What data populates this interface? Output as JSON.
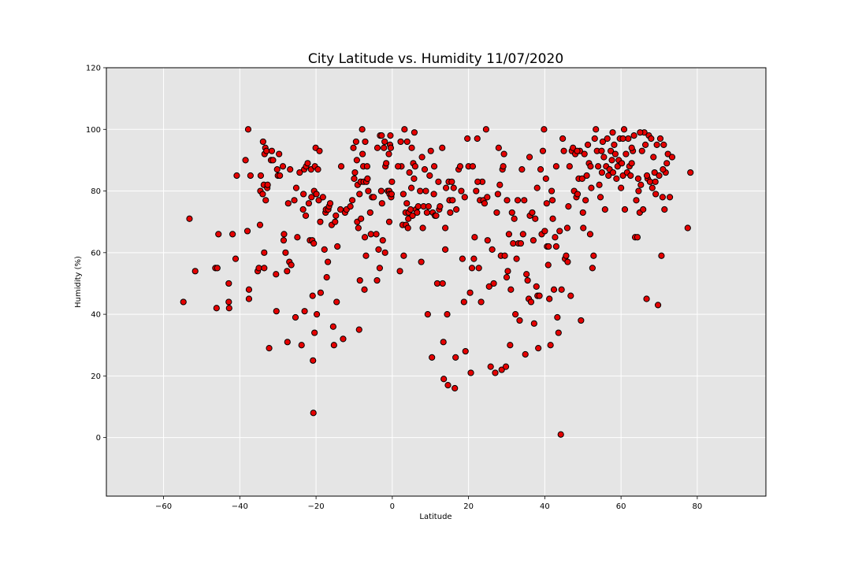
{
  "chart_data": {
    "type": "scatter",
    "title": "City Latitude vs. Humidity 11/07/2020",
    "xlabel": "Latitude",
    "ylabel": "Humidity (%)",
    "xlim": [
      -75,
      98
    ],
    "ylim": [
      -19,
      120
    ],
    "x_ticks": [
      -60,
      -40,
      -20,
      0,
      20,
      40,
      60,
      80
    ],
    "y_ticks": [
      0,
      20,
      40,
      60,
      80,
      100,
      120
    ],
    "grid": true,
    "background": "#e5e5e5",
    "marker_color": "#e60000",
    "marker_edge": "#000000",
    "points": [
      [
        -54.8,
        44
      ],
      [
        -53.2,
        71
      ],
      [
        -51.7,
        54
      ],
      [
        -46.4,
        55
      ],
      [
        -46.1,
        42
      ],
      [
        -45.9,
        55
      ],
      [
        -45.6,
        66
      ],
      [
        -42.9,
        50
      ],
      [
        -42.9,
        44
      ],
      [
        -42.8,
        42
      ],
      [
        -41.9,
        66
      ],
      [
        -41.1,
        58
      ],
      [
        -40.8,
        85
      ],
      [
        -38.5,
        90
      ],
      [
        -38.0,
        67
      ],
      [
        -37.8,
        100
      ],
      [
        -37.6,
        48
      ],
      [
        -37.6,
        45
      ],
      [
        -37.2,
        85
      ],
      [
        -35.3,
        54
      ],
      [
        -35.0,
        55
      ],
      [
        -34.7,
        69
      ],
      [
        -34.6,
        80
      ],
      [
        -34.5,
        85
      ],
      [
        -34.0,
        79
      ],
      [
        -33.9,
        96
      ],
      [
        -33.7,
        82
      ],
      [
        -33.6,
        55
      ],
      [
        -33.6,
        60
      ],
      [
        -33.5,
        92
      ],
      [
        -33.3,
        94
      ],
      [
        -33.2,
        77
      ],
      [
        -33.0,
        93
      ],
      [
        -32.8,
        81
      ],
      [
        -32.7,
        82
      ],
      [
        -32.3,
        29
      ],
      [
        -31.8,
        90
      ],
      [
        -31.6,
        93
      ],
      [
        -31.3,
        90
      ],
      [
        -30.5,
        53
      ],
      [
        -30.4,
        41
      ],
      [
        -30.2,
        87
      ],
      [
        -30.0,
        85
      ],
      [
        -29.7,
        92
      ],
      [
        -29.5,
        85
      ],
      [
        -28.7,
        88
      ],
      [
        -28.5,
        64
      ],
      [
        -28.4,
        66
      ],
      [
        -28.0,
        60
      ],
      [
        -27.6,
        54
      ],
      [
        -27.5,
        31
      ],
      [
        -27.3,
        76
      ],
      [
        -27.0,
        57
      ],
      [
        -26.8,
        87
      ],
      [
        -26.5,
        56
      ],
      [
        -25.7,
        77
      ],
      [
        -25.4,
        39
      ],
      [
        -25.2,
        81
      ],
      [
        -24.9,
        65
      ],
      [
        -24.3,
        86
      ],
      [
        -23.8,
        30
      ],
      [
        -23.4,
        74
      ],
      [
        -23.3,
        79
      ],
      [
        -23.1,
        87
      ],
      [
        -23.0,
        41
      ],
      [
        -22.7,
        72
      ],
      [
        -22.6,
        88
      ],
      [
        -22.2,
        89
      ],
      [
        -21.9,
        76
      ],
      [
        -21.6,
        64
      ],
      [
        -21.3,
        87
      ],
      [
        -21.2,
        78
      ],
      [
        -21.0,
        64
      ],
      [
        -20.9,
        46
      ],
      [
        -20.8,
        25
      ],
      [
        -20.7,
        8
      ],
      [
        -20.6,
        63
      ],
      [
        -20.5,
        80
      ],
      [
        -20.4,
        34
      ],
      [
        -20.3,
        88
      ],
      [
        -20.1,
        94
      ],
      [
        -19.9,
        79
      ],
      [
        -19.8,
        40
      ],
      [
        -19.5,
        87
      ],
      [
        -19.3,
        77
      ],
      [
        -19.1,
        93
      ],
      [
        -18.9,
        70
      ],
      [
        -18.8,
        47
      ],
      [
        -18.2,
        78
      ],
      [
        -17.8,
        61
      ],
      [
        -17.5,
        73
      ],
      [
        -17.4,
        74
      ],
      [
        -17.2,
        52
      ],
      [
        -16.9,
        57
      ],
      [
        -16.8,
        74
      ],
      [
        -16.6,
        75
      ],
      [
        -16.3,
        76
      ],
      [
        -15.9,
        69
      ],
      [
        -15.5,
        36
      ],
      [
        -15.3,
        30
      ],
      [
        -15.0,
        70
      ],
      [
        -14.8,
        72
      ],
      [
        -14.6,
        44
      ],
      [
        -14.4,
        62
      ],
      [
        -13.6,
        74
      ],
      [
        -13.4,
        88
      ],
      [
        -12.9,
        32
      ],
      [
        -12.4,
        73
      ],
      [
        -12.0,
        74
      ],
      [
        -11.0,
        75
      ],
      [
        -10.5,
        77
      ],
      [
        -10.2,
        94
      ],
      [
        -10.0,
        84
      ],
      [
        -9.8,
        86
      ],
      [
        -9.5,
        96
      ],
      [
        -9.3,
        90
      ],
      [
        -9.2,
        70
      ],
      [
        -9.1,
        82
      ],
      [
        -8.9,
        68
      ],
      [
        -8.7,
        35
      ],
      [
        -8.6,
        79
      ],
      [
        -8.5,
        51
      ],
      [
        -8.3,
        83
      ],
      [
        -8.2,
        71
      ],
      [
        -7.9,
        100
      ],
      [
        -7.8,
        92
      ],
      [
        -7.6,
        88
      ],
      [
        -7.5,
        83
      ],
      [
        -7.3,
        48
      ],
      [
        -7.2,
        65
      ],
      [
        -7.1,
        96
      ],
      [
        -6.9,
        59
      ],
      [
        -6.8,
        83
      ],
      [
        -6.6,
        88
      ],
      [
        -6.5,
        84
      ],
      [
        -6.3,
        80
      ],
      [
        -5.8,
        73
      ],
      [
        -5.6,
        66
      ],
      [
        -5.3,
        78
      ],
      [
        -4.9,
        78
      ],
      [
        -4.2,
        66
      ],
      [
        -4.0,
        51
      ],
      [
        -3.9,
        94
      ],
      [
        -3.6,
        61
      ],
      [
        -3.3,
        55
      ],
      [
        -3.2,
        98
      ],
      [
        -2.9,
        80
      ],
      [
        -2.8,
        98
      ],
      [
        -2.7,
        76
      ],
      [
        -2.5,
        64
      ],
      [
        -2.2,
        94
      ],
      [
        -1.9,
        60
      ],
      [
        -1.8,
        88
      ],
      [
        -1.6,
        89
      ],
      [
        -1.2,
        80
      ],
      [
        -0.9,
        92
      ],
      [
        -0.8,
        70
      ],
      [
        -0.8,
        80
      ],
      [
        -0.7,
        79
      ],
      [
        -0.6,
        95
      ],
      [
        -0.5,
        98
      ],
      [
        -0.3,
        78
      ],
      [
        -0.2,
        79
      ],
      [
        -0.1,
        83
      ],
      [
        2.0,
        54
      ],
      [
        2.2,
        96
      ],
      [
        2.4,
        88
      ],
      [
        2.7,
        69
      ],
      [
        2.9,
        79
      ],
      [
        3.0,
        59
      ],
      [
        3.2,
        100
      ],
      [
        3.5,
        73
      ],
      [
        3.6,
        69
      ],
      [
        3.8,
        76
      ],
      [
        3.9,
        96
      ],
      [
        4.1,
        68
      ],
      [
        4.2,
        71
      ],
      [
        4.3,
        73
      ],
      [
        4.5,
        86
      ],
      [
        4.8,
        74
      ],
      [
        5.0,
        81
      ],
      [
        5.1,
        94
      ],
      [
        5.3,
        72
      ],
      [
        5.5,
        89
      ],
      [
        5.7,
        84
      ],
      [
        5.8,
        99
      ],
      [
        6.0,
        88
      ],
      [
        6.2,
        74
      ],
      [
        6.5,
        73
      ],
      [
        6.8,
        75
      ],
      [
        7.3,
        80
      ],
      [
        7.6,
        57
      ],
      [
        7.8,
        91
      ],
      [
        8.0,
        68
      ],
      [
        8.2,
        75
      ],
      [
        8.5,
        87
      ],
      [
        8.8,
        80
      ],
      [
        9.1,
        73
      ],
      [
        9.3,
        40
      ],
      [
        9.5,
        75
      ],
      [
        9.8,
        85
      ],
      [
        10.1,
        93
      ],
      [
        10.4,
        26
      ],
      [
        10.6,
        73
      ],
      [
        10.9,
        79
      ],
      [
        11.2,
        72
      ],
      [
        11.5,
        72
      ],
      [
        11.8,
        50
      ],
      [
        12.1,
        83
      ],
      [
        12.3,
        74
      ],
      [
        12.5,
        75
      ],
      [
        13.1,
        94
      ],
      [
        13.2,
        50
      ],
      [
        13.4,
        31
      ],
      [
        13.5,
        19
      ],
      [
        13.9,
        68
      ],
      [
        13.9,
        61
      ],
      [
        14.1,
        81
      ],
      [
        14.4,
        40
      ],
      [
        14.6,
        17
      ],
      [
        14.8,
        83
      ],
      [
        15.0,
        77
      ],
      [
        15.2,
        73
      ],
      [
        15.6,
        83
      ],
      [
        15.8,
        77
      ],
      [
        16.1,
        81
      ],
      [
        16.4,
        16
      ],
      [
        16.6,
        26
      ],
      [
        16.8,
        74
      ],
      [
        17.4,
        87
      ],
      [
        17.8,
        88
      ],
      [
        18.1,
        80
      ],
      [
        18.4,
        58
      ],
      [
        18.8,
        44
      ],
      [
        19.2,
        28
      ],
      [
        19.7,
        97
      ],
      [
        20.0,
        88
      ],
      [
        20.4,
        47
      ],
      [
        20.6,
        21
      ],
      [
        20.9,
        55
      ],
      [
        21.1,
        88
      ],
      [
        21.4,
        58
      ],
      [
        21.6,
        65
      ],
      [
        22.0,
        80
      ],
      [
        22.3,
        97
      ],
      [
        22.7,
        55
      ],
      [
        23.0,
        77
      ],
      [
        23.3,
        44
      ],
      [
        23.6,
        83
      ],
      [
        23.9,
        77
      ],
      [
        24.2,
        76
      ],
      [
        24.6,
        100
      ],
      [
        25.0,
        64
      ],
      [
        25.4,
        49
      ],
      [
        25.8,
        23
      ],
      [
        26.2,
        61
      ],
      [
        26.6,
        50
      ],
      [
        27.0,
        21
      ],
      [
        27.4,
        73
      ],
      [
        27.7,
        79
      ],
      [
        27.9,
        94
      ],
      [
        28.2,
        82
      ],
      [
        28.5,
        59
      ],
      [
        28.7,
        22
      ],
      [
        28.9,
        87
      ],
      [
        29.1,
        88
      ],
      [
        29.3,
        92
      ],
      [
        29.5,
        59
      ],
      [
        29.8,
        23
      ],
      [
        30.1,
        77
      ],
      [
        30.3,
        54
      ],
      [
        30.6,
        66
      ],
      [
        30.9,
        30
      ],
      [
        31.1,
        48
      ],
      [
        31.4,
        73
      ],
      [
        31.7,
        63
      ],
      [
        32.0,
        71
      ],
      [
        32.3,
        40
      ],
      [
        32.6,
        58
      ],
      [
        32.9,
        77
      ],
      [
        33.1,
        63
      ],
      [
        33.4,
        38
      ],
      [
        33.7,
        63
      ],
      [
        34.0,
        87
      ],
      [
        34.3,
        66
      ],
      [
        34.6,
        77
      ],
      [
        34.9,
        27
      ],
      [
        35.2,
        53
      ],
      [
        35.5,
        51
      ],
      [
        35.8,
        45
      ],
      [
        36.1,
        72
      ],
      [
        36.4,
        44
      ],
      [
        36.7,
        73
      ],
      [
        37.0,
        64
      ],
      [
        37.2,
        37
      ],
      [
        37.5,
        71
      ],
      [
        37.8,
        49
      ],
      [
        38.1,
        46
      ],
      [
        38.3,
        29
      ],
      [
        38.6,
        46
      ],
      [
        38.9,
        87
      ],
      [
        39.2,
        66
      ],
      [
        39.5,
        93
      ],
      [
        39.8,
        100
      ],
      [
        40.0,
        67
      ],
      [
        40.3,
        84
      ],
      [
        40.6,
        62
      ],
      [
        40.9,
        56
      ],
      [
        41.2,
        45
      ],
      [
        41.5,
        30
      ],
      [
        41.8,
        80
      ],
      [
        42.1,
        71
      ],
      [
        42.4,
        48
      ],
      [
        42.7,
        65
      ],
      [
        43.0,
        88
      ],
      [
        43.3,
        39
      ],
      [
        43.6,
        34
      ],
      [
        43.9,
        67
      ],
      [
        44.2,
        1
      ],
      [
        44.4,
        48
      ],
      [
        44.7,
        97
      ],
      [
        45.0,
        93
      ],
      [
        45.3,
        58
      ],
      [
        45.6,
        59
      ],
      [
        45.9,
        68
      ],
      [
        46.2,
        75
      ],
      [
        46.5,
        88
      ],
      [
        46.8,
        46
      ],
      [
        47.1,
        93
      ],
      [
        47.4,
        94
      ],
      [
        47.7,
        80
      ],
      [
        48.0,
        92
      ],
      [
        48.3,
        78
      ],
      [
        48.6,
        79
      ],
      [
        48.9,
        84
      ],
      [
        49.2,
        93
      ],
      [
        49.5,
        38
      ],
      [
        49.8,
        84
      ],
      [
        50.1,
        68
      ],
      [
        50.4,
        92
      ],
      [
        50.7,
        77
      ],
      [
        51.0,
        85
      ],
      [
        51.3,
        95
      ],
      [
        51.6,
        89
      ],
      [
        51.9,
        66
      ],
      [
        52.2,
        81
      ],
      [
        52.5,
        55
      ],
      [
        52.8,
        59
      ],
      [
        53.1,
        97
      ],
      [
        53.4,
        100
      ],
      [
        53.7,
        93
      ],
      [
        54.0,
        88
      ],
      [
        54.3,
        82
      ],
      [
        54.6,
        78
      ],
      [
        54.9,
        93
      ],
      [
        55.2,
        96
      ],
      [
        55.5,
        91
      ],
      [
        55.8,
        74
      ],
      [
        56.1,
        88
      ],
      [
        56.4,
        97
      ],
      [
        56.7,
        85
      ],
      [
        57.0,
        87
      ],
      [
        57.3,
        93
      ],
      [
        57.6,
        90
      ],
      [
        57.9,
        86
      ],
      [
        58.2,
        95
      ],
      [
        58.5,
        92
      ],
      [
        58.8,
        84
      ],
      [
        59.1,
        88
      ],
      [
        59.4,
        90
      ],
      [
        59.7,
        97
      ],
      [
        60.0,
        81
      ],
      [
        60.2,
        89
      ],
      [
        60.5,
        85
      ],
      [
        60.8,
        100
      ],
      [
        61.0,
        74
      ],
      [
        61.3,
        92
      ],
      [
        61.6,
        86
      ],
      [
        61.9,
        97
      ],
      [
        62.2,
        88
      ],
      [
        62.5,
        85
      ],
      [
        62.8,
        89
      ],
      [
        63.1,
        93
      ],
      [
        63.4,
        98
      ],
      [
        63.7,
        65
      ],
      [
        64.0,
        77
      ],
      [
        64.3,
        65
      ],
      [
        64.6,
        80
      ],
      [
        64.9,
        73
      ],
      [
        65.2,
        82
      ],
      [
        65.5,
        93
      ],
      [
        65.8,
        74
      ],
      [
        66.1,
        99
      ],
      [
        66.4,
        95
      ],
      [
        66.7,
        45
      ],
      [
        67.0,
        84
      ],
      [
        67.3,
        98
      ],
      [
        67.6,
        83
      ],
      [
        67.9,
        97
      ],
      [
        68.2,
        81
      ],
      [
        68.5,
        91
      ],
      [
        68.8,
        86
      ],
      [
        69.1,
        79
      ],
      [
        69.4,
        95
      ],
      [
        69.7,
        43
      ],
      [
        70.0,
        85
      ],
      [
        70.3,
        97
      ],
      [
        70.6,
        59
      ],
      [
        70.9,
        78
      ],
      [
        71.2,
        95
      ],
      [
        71.4,
        74
      ],
      [
        71.7,
        86
      ],
      [
        72.0,
        89
      ],
      [
        72.3,
        92
      ],
      [
        72.8,
        78
      ],
      [
        73.4,
        91
      ],
      [
        77.5,
        68
      ],
      [
        78.2,
        86
      ],
      [
        -2.0,
        96
      ],
      [
        -0.4,
        94
      ],
      [
        1.5,
        88
      ],
      [
        11.0,
        88
      ],
      [
        19.0,
        78
      ],
      [
        22.4,
        83
      ],
      [
        24.9,
        78
      ],
      [
        30.0,
        52
      ],
      [
        36.0,
        91
      ],
      [
        38.0,
        81
      ],
      [
        40.5,
        76
      ],
      [
        41.0,
        62
      ],
      [
        42.0,
        77
      ],
      [
        43.0,
        62
      ],
      [
        46.0,
        57
      ],
      [
        48.5,
        93
      ],
      [
        50.0,
        73
      ],
      [
        52.0,
        88
      ],
      [
        55.0,
        86
      ],
      [
        57.8,
        99
      ],
      [
        60.5,
        97
      ],
      [
        62.8,
        94
      ],
      [
        64.5,
        84
      ],
      [
        65.0,
        99
      ],
      [
        66.8,
        85
      ],
      [
        69.0,
        83
      ],
      [
        71.0,
        87
      ]
    ]
  }
}
